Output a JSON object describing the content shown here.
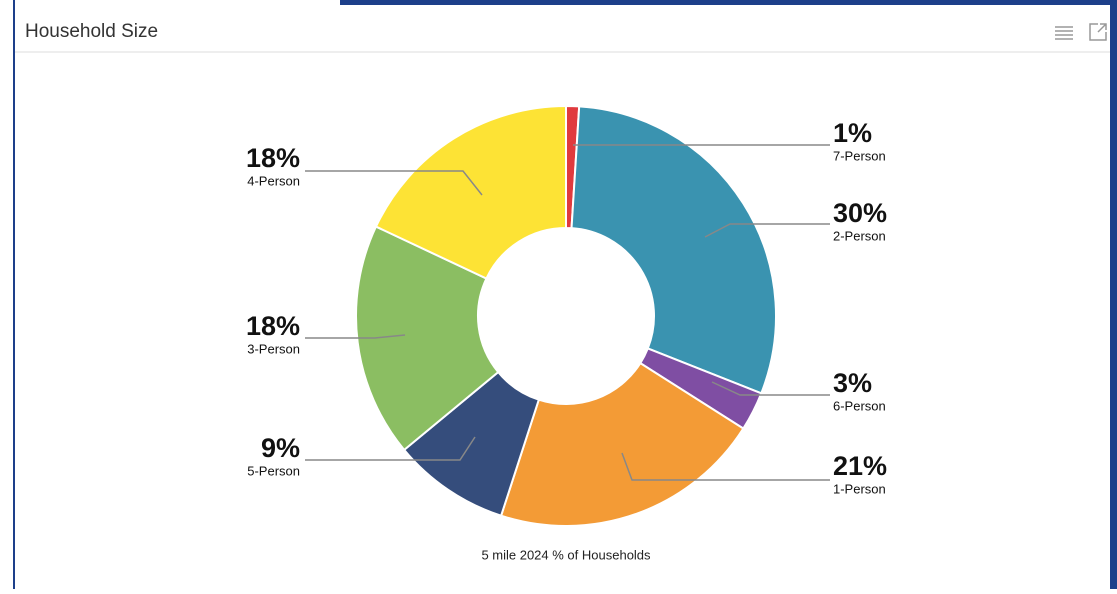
{
  "header": {
    "title": "Household Size"
  },
  "chart_data": {
    "type": "donut",
    "categories": [
      "7-Person",
      "2-Person",
      "6-Person",
      "1-Person",
      "5-Person",
      "3-Person",
      "4-Person"
    ],
    "values": [
      1,
      30,
      3,
      21,
      9,
      18,
      18
    ],
    "value_labels": [
      "1%",
      "30%",
      "3%",
      "21%",
      "9%",
      "18%",
      "18%"
    ],
    "colors": [
      "#e03a3e",
      "#3a93b0",
      "#7f4ea3",
      "#f39b36",
      "#354d7c",
      "#8bbe62",
      "#fde335"
    ],
    "caption": "5 mile 2024 % of Households"
  }
}
